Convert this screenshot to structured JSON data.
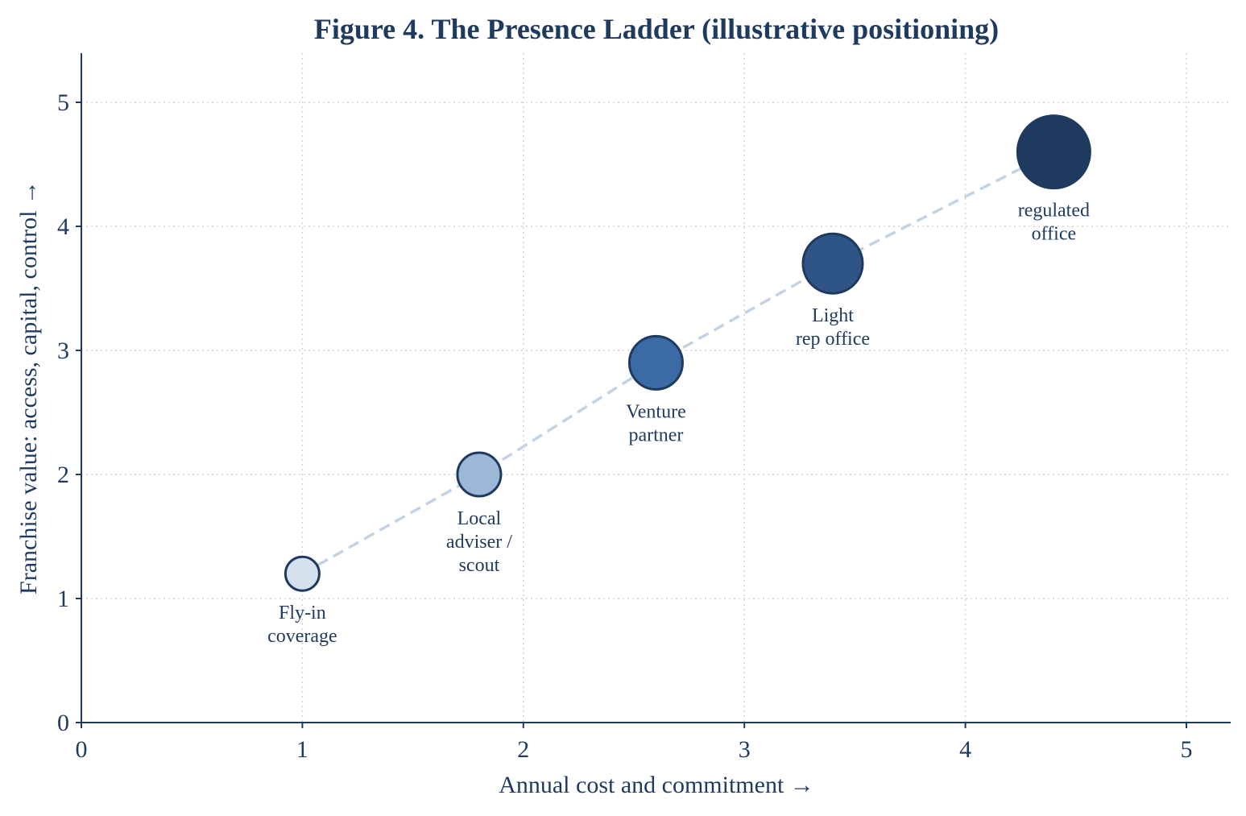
{
  "chart_data": {
    "type": "scatter",
    "title": "Figure 4. The Presence Ladder (illustrative positioning)",
    "xlabel": "Annual cost and commitment  →",
    "ylabel": "Franchise value: access, capital, control  →",
    "xlim": [
      0,
      5.2
    ],
    "ylim": [
      0,
      5.4
    ],
    "x_ticks": [
      0,
      1,
      2,
      3,
      4,
      5
    ],
    "y_ticks": [
      0,
      1,
      2,
      3,
      4,
      5
    ],
    "grid": true,
    "trend_line": "dashed",
    "points": [
      {
        "x": 1.0,
        "y": 1.2,
        "label": [
          "Fly-in",
          "coverage"
        ],
        "color": "#d6e1ef",
        "size": 1
      },
      {
        "x": 1.8,
        "y": 2.0,
        "label": [
          "Local",
          "adviser /",
          "scout"
        ],
        "color": "#9db8d7",
        "size": 2
      },
      {
        "x": 2.6,
        "y": 2.9,
        "label": [
          "Venture",
          "partner"
        ],
        "color": "#3b6aa5",
        "size": 3
      },
      {
        "x": 3.4,
        "y": 3.7,
        "label": [
          "Light",
          "rep office"
        ],
        "color": "#2f5486",
        "size": 4
      },
      {
        "x": 4.4,
        "y": 4.6,
        "label": [
          "regulated",
          "office"
        ],
        "color": "#1f3a5f",
        "size": 5
      }
    ]
  }
}
